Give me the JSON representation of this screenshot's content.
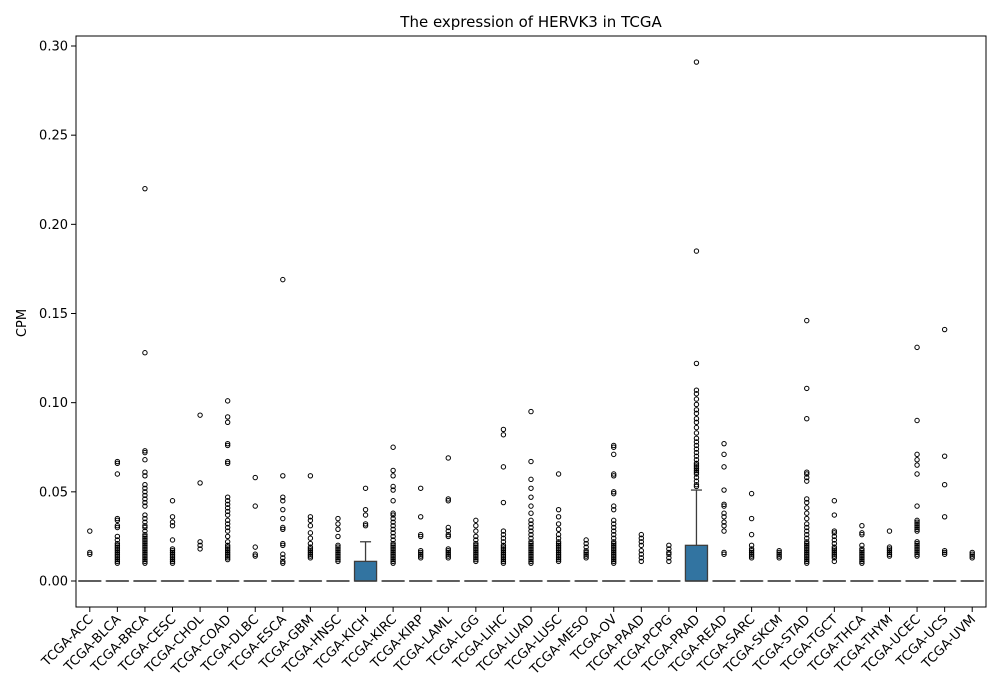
{
  "chart_data": {
    "type": "box",
    "title": "The expression of HERVK3 in TCGA",
    "xlabel": "",
    "ylabel": "CPM",
    "ylim": [
      -0.015,
      0.307
    ],
    "yticks": [
      "0.00",
      "0.05",
      "0.10",
      "0.15",
      "0.20",
      "0.25",
      "0.30"
    ],
    "box_color": "#3274a1",
    "grid": false,
    "categories": [
      "TCGA-ACC",
      "TCGA-BLCA",
      "TCGA-BRCA",
      "TCGA-CESC",
      "TCGA-CHOL",
      "TCGA-COAD",
      "TCGA-DLBC",
      "TCGA-ESCA",
      "TCGA-GBM",
      "TCGA-HNSC",
      "TCGA-KICH",
      "TCGA-KIRC",
      "TCGA-KIRP",
      "TCGA-LAML",
      "TCGA-LGG",
      "TCGA-LIHC",
      "TCGA-LUAD",
      "TCGA-LUSC",
      "TCGA-MESO",
      "TCGA-OV",
      "TCGA-PAAD",
      "TCGA-PCPG",
      "TCGA-PRAD",
      "TCGA-READ",
      "TCGA-SARC",
      "TCGA-SKCM",
      "TCGA-STAD",
      "TCGA-TGCT",
      "TCGA-THCA",
      "TCGA-THYM",
      "TCGA-UCEC",
      "TCGA-UCS",
      "TCGA-UVM"
    ],
    "series": [
      {
        "q1": 0,
        "median": 0,
        "q3": 0,
        "whisker_low": 0,
        "whisker_high": 0,
        "outliers": [
          0.028,
          0.016,
          0.015
        ]
      },
      {
        "q1": 0,
        "median": 0,
        "q3": 0,
        "whisker_low": 0,
        "whisker_high": 0,
        "outliers": [
          0.067,
          0.066,
          0.06,
          0.035,
          0.034,
          0.031,
          0.03,
          0.025,
          0.023,
          0.021,
          0.02,
          0.019,
          0.018,
          0.017,
          0.016,
          0.015,
          0.014,
          0.013,
          0.012,
          0.011,
          0.01
        ]
      },
      {
        "q1": 0,
        "median": 0,
        "q3": 0,
        "whisker_low": 0,
        "whisker_high": 0,
        "outliers": [
          0.22,
          0.128,
          0.073,
          0.072,
          0.068,
          0.061,
          0.059,
          0.054,
          0.052,
          0.05,
          0.048,
          0.046,
          0.044,
          0.042,
          0.037,
          0.035,
          0.033,
          0.031,
          0.03,
          0.028,
          0.026,
          0.025,
          0.024,
          0.023,
          0.022,
          0.021,
          0.02,
          0.019,
          0.018,
          0.017,
          0.016,
          0.015,
          0.014,
          0.013,
          0.012,
          0.011,
          0.01
        ]
      },
      {
        "q1": 0,
        "median": 0,
        "q3": 0,
        "whisker_low": 0,
        "whisker_high": 0,
        "outliers": [
          0.045,
          0.036,
          0.033,
          0.031,
          0.023,
          0.018,
          0.017,
          0.016,
          0.015,
          0.014,
          0.013,
          0.012,
          0.011,
          0.01
        ]
      },
      {
        "q1": 0,
        "median": 0,
        "q3": 0,
        "whisker_low": 0,
        "whisker_high": 0,
        "outliers": [
          0.093,
          0.055,
          0.022,
          0.02,
          0.018
        ]
      },
      {
        "q1": 0,
        "median": 0,
        "q3": 0,
        "whisker_low": 0,
        "whisker_high": 0,
        "outliers": [
          0.101,
          0.092,
          0.089,
          0.077,
          0.076,
          0.067,
          0.066,
          0.047,
          0.045,
          0.043,
          0.041,
          0.039,
          0.037,
          0.034,
          0.032,
          0.03,
          0.028,
          0.025,
          0.022,
          0.02,
          0.019,
          0.018,
          0.017,
          0.016,
          0.015,
          0.014,
          0.013,
          0.012
        ]
      },
      {
        "q1": 0,
        "median": 0,
        "q3": 0,
        "whisker_low": 0,
        "whisker_high": 0,
        "outliers": [
          0.058,
          0.042,
          0.019,
          0.015,
          0.014
        ]
      },
      {
        "q1": 0,
        "median": 0,
        "q3": 0,
        "whisker_low": 0,
        "whisker_high": 0,
        "outliers": [
          0.169,
          0.059,
          0.047,
          0.045,
          0.04,
          0.035,
          0.03,
          0.029,
          0.021,
          0.02,
          0.015,
          0.013,
          0.011,
          0.01
        ]
      },
      {
        "q1": 0,
        "median": 0,
        "q3": 0,
        "whisker_low": 0,
        "whisker_high": 0,
        "outliers": [
          0.059,
          0.036,
          0.034,
          0.031,
          0.027,
          0.024,
          0.021,
          0.019,
          0.018,
          0.017,
          0.016,
          0.015,
          0.014,
          0.013
        ]
      },
      {
        "q1": 0,
        "median": 0,
        "q3": 0,
        "whisker_low": 0,
        "whisker_high": 0,
        "outliers": [
          0.035,
          0.032,
          0.029,
          0.025,
          0.02,
          0.019,
          0.018,
          0.017,
          0.016,
          0.015,
          0.014,
          0.013,
          0.012,
          0.011
        ]
      },
      {
        "q1": 0,
        "median": 0,
        "q3": 0.011,
        "whisker_low": 0,
        "whisker_high": 0.022,
        "outliers": [
          0.052,
          0.04,
          0.037,
          0.032,
          0.031
        ]
      },
      {
        "q1": 0,
        "median": 0,
        "q3": 0,
        "whisker_low": 0,
        "whisker_high": 0,
        "outliers": [
          0.075,
          0.062,
          0.059,
          0.053,
          0.051,
          0.045,
          0.038,
          0.037,
          0.035,
          0.033,
          0.031,
          0.029,
          0.027,
          0.025,
          0.023,
          0.021,
          0.02,
          0.019,
          0.018,
          0.017,
          0.016,
          0.015,
          0.014,
          0.013,
          0.012,
          0.011,
          0.01
        ]
      },
      {
        "q1": 0,
        "median": 0,
        "q3": 0,
        "whisker_low": 0,
        "whisker_high": 0,
        "outliers": [
          0.052,
          0.036,
          0.026,
          0.025,
          0.017,
          0.016,
          0.015,
          0.014,
          0.013
        ]
      },
      {
        "q1": 0,
        "median": 0,
        "q3": 0,
        "whisker_low": 0,
        "whisker_high": 0,
        "outliers": [
          0.069,
          0.046,
          0.045,
          0.03,
          0.028,
          0.026,
          0.025,
          0.018,
          0.017,
          0.016,
          0.015,
          0.014,
          0.013
        ]
      },
      {
        "q1": 0,
        "median": 0,
        "q3": 0,
        "whisker_low": 0,
        "whisker_high": 0,
        "outliers": [
          0.034,
          0.031,
          0.028,
          0.025,
          0.023,
          0.021,
          0.02,
          0.019,
          0.018,
          0.017,
          0.016,
          0.015,
          0.014,
          0.013,
          0.012,
          0.011
        ]
      },
      {
        "q1": 0,
        "median": 0,
        "q3": 0,
        "whisker_low": 0,
        "whisker_high": 0,
        "outliers": [
          0.085,
          0.082,
          0.064,
          0.044,
          0.028,
          0.026,
          0.024,
          0.022,
          0.02,
          0.019,
          0.018,
          0.017,
          0.016,
          0.015,
          0.014,
          0.013,
          0.012,
          0.011,
          0.01
        ]
      },
      {
        "q1": 0,
        "median": 0,
        "q3": 0,
        "whisker_low": 0,
        "whisker_high": 0,
        "outliers": [
          0.095,
          0.067,
          0.057,
          0.052,
          0.047,
          0.042,
          0.038,
          0.034,
          0.032,
          0.03,
          0.028,
          0.026,
          0.024,
          0.022,
          0.021,
          0.02,
          0.019,
          0.018,
          0.017,
          0.016,
          0.015,
          0.014,
          0.013,
          0.012,
          0.011,
          0.01
        ]
      },
      {
        "q1": 0,
        "median": 0,
        "q3": 0,
        "whisker_low": 0,
        "whisker_high": 0,
        "outliers": [
          0.06,
          0.04,
          0.036,
          0.032,
          0.029,
          0.026,
          0.024,
          0.022,
          0.021,
          0.02,
          0.019,
          0.018,
          0.017,
          0.016,
          0.015,
          0.014,
          0.013,
          0.012,
          0.011
        ]
      },
      {
        "q1": 0,
        "median": 0,
        "q3": 0,
        "whisker_low": 0,
        "whisker_high": 0,
        "outliers": [
          0.023,
          0.021,
          0.019,
          0.017,
          0.016,
          0.015,
          0.014,
          0.013
        ]
      },
      {
        "q1": 0,
        "median": 0,
        "q3": 0,
        "whisker_low": 0,
        "whisker_high": 0,
        "outliers": [
          0.076,
          0.075,
          0.071,
          0.06,
          0.059,
          0.05,
          0.049,
          0.042,
          0.04,
          0.034,
          0.032,
          0.03,
          0.028,
          0.026,
          0.024,
          0.022,
          0.021,
          0.02,
          0.019,
          0.018,
          0.017,
          0.016,
          0.015,
          0.014,
          0.013,
          0.012,
          0.011,
          0.01
        ]
      },
      {
        "q1": 0,
        "median": 0,
        "q3": 0,
        "whisker_low": 0,
        "whisker_high": 0,
        "outliers": [
          0.026,
          0.024,
          0.022,
          0.02,
          0.017,
          0.015,
          0.013,
          0.011
        ]
      },
      {
        "q1": 0,
        "median": 0,
        "q3": 0,
        "whisker_low": 0,
        "whisker_high": 0,
        "outliers": [
          0.02,
          0.018,
          0.016,
          0.015,
          0.013,
          0.011
        ]
      },
      {
        "q1": 0,
        "median": 0,
        "q3": 0.02,
        "whisker_low": 0,
        "whisker_high": 0.051,
        "outliers": [
          0.291,
          0.185,
          0.122,
          0.107,
          0.105,
          0.102,
          0.099,
          0.096,
          0.094,
          0.091,
          0.089,
          0.086,
          0.083,
          0.08,
          0.078,
          0.076,
          0.074,
          0.072,
          0.07,
          0.068,
          0.066,
          0.065,
          0.064,
          0.063,
          0.062,
          0.061,
          0.06,
          0.058,
          0.056,
          0.054,
          0.053
        ]
      },
      {
        "q1": 0,
        "median": 0,
        "q3": 0,
        "whisker_low": 0,
        "whisker_high": 0,
        "outliers": [
          0.077,
          0.071,
          0.064,
          0.051,
          0.043,
          0.042,
          0.038,
          0.036,
          0.033,
          0.031,
          0.028,
          0.016,
          0.015
        ]
      },
      {
        "q1": 0,
        "median": 0,
        "q3": 0,
        "whisker_low": 0,
        "whisker_high": 0,
        "outliers": [
          0.049,
          0.035,
          0.026,
          0.02,
          0.018,
          0.017,
          0.016,
          0.015,
          0.014,
          0.013
        ]
      },
      {
        "q1": 0,
        "median": 0,
        "q3": 0,
        "whisker_low": 0,
        "whisker_high": 0,
        "outliers": [
          0.017,
          0.016,
          0.015,
          0.014,
          0.013
        ]
      },
      {
        "q1": 0,
        "median": 0,
        "q3": 0,
        "whisker_low": 0,
        "whisker_high": 0,
        "outliers": [
          0.146,
          0.108,
          0.091,
          0.061,
          0.06,
          0.058,
          0.056,
          0.046,
          0.044,
          0.041,
          0.038,
          0.035,
          0.032,
          0.03,
          0.028,
          0.026,
          0.024,
          0.022,
          0.021,
          0.02,
          0.019,
          0.018,
          0.017,
          0.016,
          0.015,
          0.014,
          0.013,
          0.012,
          0.011,
          0.01
        ]
      },
      {
        "q1": 0,
        "median": 0,
        "q3": 0,
        "whisker_low": 0,
        "whisker_high": 0,
        "outliers": [
          0.045,
          0.037,
          0.028,
          0.027,
          0.025,
          0.023,
          0.021,
          0.019,
          0.018,
          0.017,
          0.016,
          0.015,
          0.014,
          0.013,
          0.011
        ]
      },
      {
        "q1": 0,
        "median": 0,
        "q3": 0,
        "whisker_low": 0,
        "whisker_high": 0,
        "outliers": [
          0.031,
          0.027,
          0.026,
          0.02,
          0.018,
          0.017,
          0.016,
          0.015,
          0.014,
          0.013,
          0.012,
          0.011,
          0.01
        ]
      },
      {
        "q1": 0,
        "median": 0,
        "q3": 0,
        "whisker_low": 0,
        "whisker_high": 0,
        "outliers": [
          0.028,
          0.019,
          0.018,
          0.017,
          0.016,
          0.015,
          0.014
        ]
      },
      {
        "q1": 0,
        "median": 0,
        "q3": 0,
        "whisker_low": 0,
        "whisker_high": 0,
        "outliers": [
          0.131,
          0.09,
          0.071,
          0.068,
          0.065,
          0.06,
          0.042,
          0.034,
          0.033,
          0.032,
          0.031,
          0.03,
          0.029,
          0.028,
          0.022,
          0.021,
          0.02,
          0.019,
          0.018,
          0.017,
          0.016,
          0.015,
          0.014
        ]
      },
      {
        "q1": 0,
        "median": 0,
        "q3": 0,
        "whisker_low": 0,
        "whisker_high": 0,
        "outliers": [
          0.141,
          0.07,
          0.054,
          0.036,
          0.017,
          0.016,
          0.015
        ]
      },
      {
        "q1": 0,
        "median": 0,
        "q3": 0,
        "whisker_low": 0,
        "whisker_high": 0,
        "outliers": [
          0.016,
          0.015,
          0.014,
          0.013
        ]
      }
    ]
  }
}
